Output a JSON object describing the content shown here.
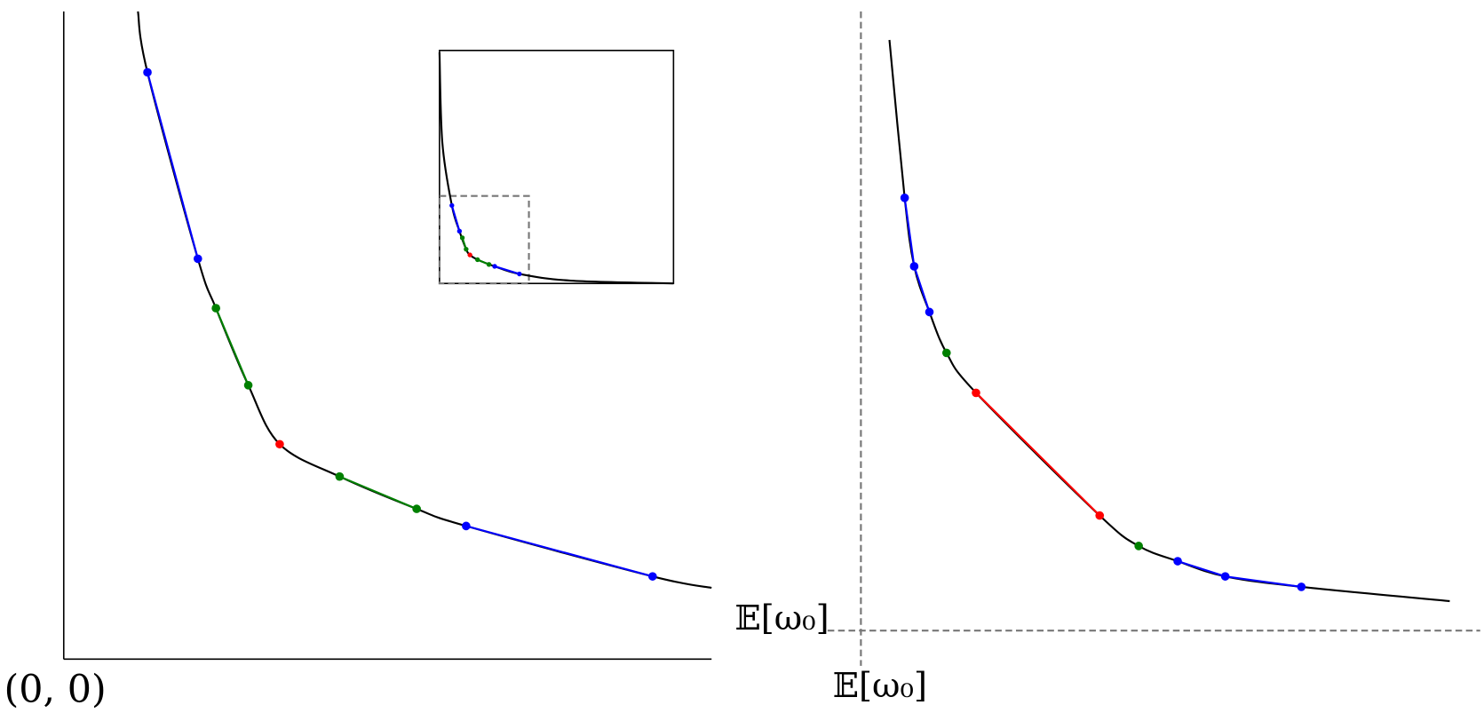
{
  "left_panel": {
    "origin_label": "(0, 0)"
  },
  "right_panel": {
    "y_reference_label": "𝔼[ω₀]",
    "x_reference_label": "𝔼[ω₀]"
  }
}
